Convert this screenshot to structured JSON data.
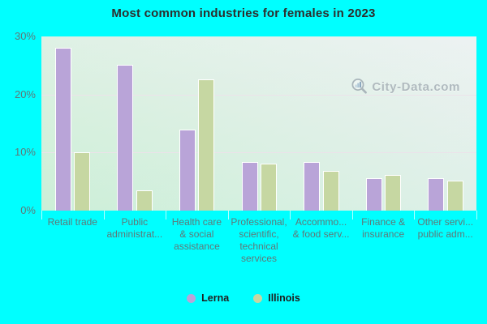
{
  "title": "Most common industries for females in 2023",
  "watermark": {
    "text": "City-Data.com"
  },
  "colors": {
    "background": "#00ffff",
    "lerna": "#b9a4d8",
    "illinois": "#c6d7a2",
    "bar_border": "#ffffff",
    "grid": "#ece2ea",
    "axis_text": "#5f7878",
    "title_text": "#2d2d2d",
    "watermark_text": "#a7b1b7"
  },
  "legend": {
    "items": [
      {
        "label": "Lerna",
        "color": "#b9a4d8"
      },
      {
        "label": "Illinois",
        "color": "#c6d7a2"
      }
    ]
  },
  "chart_data": {
    "type": "bar",
    "title": "Most common industries for females in 2023",
    "categories": [
      "Retail trade",
      "Public\nadministrat...",
      "Health care\n& social\nassistance",
      "Professional,\nscientific,\ntechnical\nservices",
      "Accommo...\n& food serv...",
      "Finance &\ninsurance",
      "Other servi...\npublic adm..."
    ],
    "series": [
      {
        "name": "Lerna",
        "color": "#b9a4d8",
        "values": [
          28.1,
          25.1,
          13.9,
          8.4,
          8.4,
          5.6,
          5.6
        ]
      },
      {
        "name": "Illinois",
        "color": "#c6d7a2",
        "values": [
          10.0,
          3.5,
          22.6,
          8.1,
          6.9,
          6.2,
          5.2
        ]
      }
    ],
    "xlabel": "",
    "ylabel": "",
    "ylim": [
      0,
      30
    ],
    "yticks": [
      {
        "label": "30%",
        "value": 30
      },
      {
        "label": "20%",
        "value": 20
      },
      {
        "label": "10%",
        "value": 10
      },
      {
        "label": "0%",
        "value": 0
      }
    ],
    "grid": true,
    "legend_position": "bottom"
  }
}
